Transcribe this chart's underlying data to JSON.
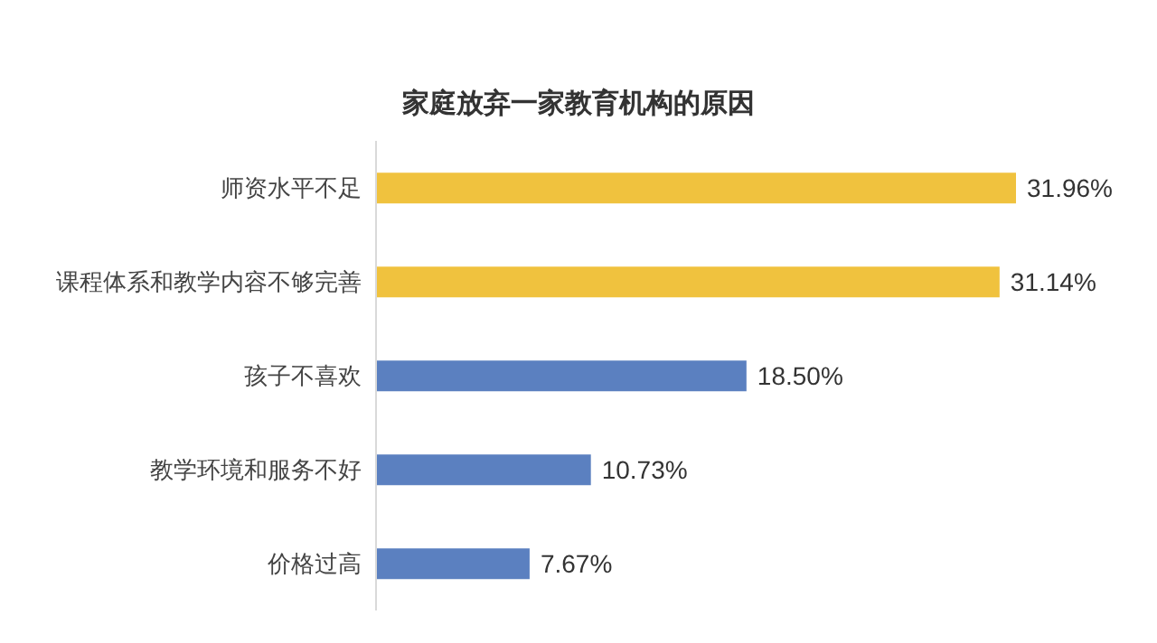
{
  "chart_data": {
    "type": "bar",
    "orientation": "horizontal",
    "title": "家庭放弃一家教育机构的原因",
    "categories": [
      "师资水平不足",
      "课程体系和教学内容不够完善",
      "孩子不喜欢",
      "教学环境和服务不好",
      "价格过高"
    ],
    "values": [
      31.96,
      31.14,
      18.5,
      10.73,
      7.67
    ],
    "value_labels": [
      "31.96%",
      "31.14%",
      "18.50%",
      "10.73%",
      "7.67%"
    ],
    "colors": [
      "#f0c23e",
      "#f0c23e",
      "#5b80c0",
      "#5b80c0",
      "#5b80c0"
    ]
  }
}
